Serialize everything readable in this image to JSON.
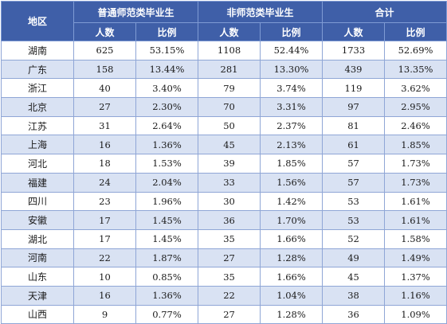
{
  "header": {
    "region": "地区",
    "groups": [
      "普通师范类毕业生",
      "非师范类毕业生",
      "合计"
    ],
    "sub": [
      "人数",
      "比例",
      "人数",
      "比例",
      "人数",
      "比例"
    ]
  },
  "rows": [
    {
      "region": "湖南",
      "c": [
        "625",
        "53.15%",
        "1108",
        "52.44%",
        "1733",
        "52.69%"
      ]
    },
    {
      "region": "广东",
      "c": [
        "158",
        "13.44%",
        "281",
        "13.30%",
        "439",
        "13.35%"
      ]
    },
    {
      "region": "浙江",
      "c": [
        "40",
        "3.40%",
        "79",
        "3.74%",
        "119",
        "3.62%"
      ]
    },
    {
      "region": "北京",
      "c": [
        "27",
        "2.30%",
        "70",
        "3.31%",
        "97",
        "2.95%"
      ]
    },
    {
      "region": "江苏",
      "c": [
        "31",
        "2.64%",
        "50",
        "2.37%",
        "81",
        "2.46%"
      ]
    },
    {
      "region": "上海",
      "c": [
        "16",
        "1.36%",
        "45",
        "2.13%",
        "61",
        "1.85%"
      ]
    },
    {
      "region": "河北",
      "c": [
        "18",
        "1.53%",
        "39",
        "1.85%",
        "57",
        "1.73%"
      ]
    },
    {
      "region": "福建",
      "c": [
        "24",
        "2.04%",
        "33",
        "1.56%",
        "57",
        "1.73%"
      ]
    },
    {
      "region": "四川",
      "c": [
        "23",
        "1.96%",
        "30",
        "1.42%",
        "53",
        "1.61%"
      ]
    },
    {
      "region": "安徽",
      "c": [
        "17",
        "1.45%",
        "36",
        "1.70%",
        "53",
        "1.61%"
      ]
    },
    {
      "region": "湖北",
      "c": [
        "17",
        "1.45%",
        "35",
        "1.66%",
        "52",
        "1.58%"
      ]
    },
    {
      "region": "河南",
      "c": [
        "22",
        "1.87%",
        "27",
        "1.28%",
        "49",
        "1.49%"
      ]
    },
    {
      "region": "山东",
      "c": [
        "10",
        "0.85%",
        "35",
        "1.66%",
        "45",
        "1.37%"
      ]
    },
    {
      "region": "天津",
      "c": [
        "16",
        "1.36%",
        "22",
        "1.04%",
        "38",
        "1.16%"
      ]
    },
    {
      "region": "山西",
      "c": [
        "9",
        "0.77%",
        "27",
        "1.28%",
        "36",
        "1.09%"
      ]
    }
  ],
  "colors": {
    "header_bg": "#3f5fa8",
    "stripe_bg": "#d9e2f3",
    "border": "#8fa6d6"
  }
}
